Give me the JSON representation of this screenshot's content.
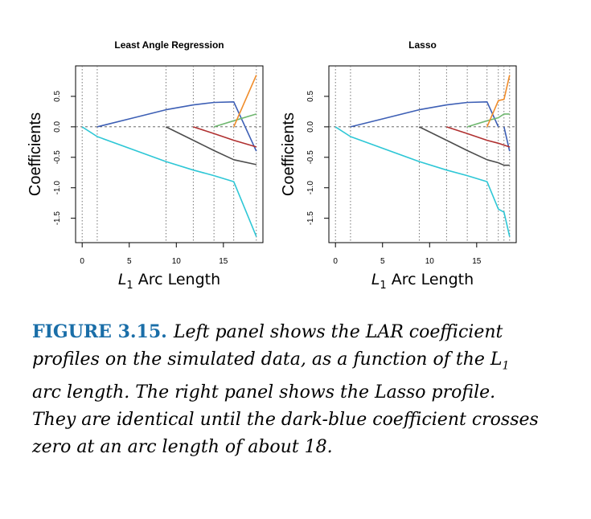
{
  "chart_data": [
    {
      "type": "line",
      "title": "Least Angle Regression",
      "xlabel": "L1 Arc Length",
      "xlabel_main": "L",
      "xlabel_sub": "1",
      "xlabel_rest": " Arc Length",
      "ylabel": "Coefficients",
      "xlim": [
        -0.7,
        19.2
      ],
      "ylim": [
        -1.9,
        1.0
      ],
      "xticks": [
        0,
        5,
        10,
        15
      ],
      "yticks": [
        -1.5,
        -1.0,
        -0.5,
        0.0,
        0.5
      ],
      "ytick_labels": [
        "-1.5",
        "-1.0",
        "-0.5",
        "0.0",
        "0.5"
      ],
      "vlines": [
        0.0,
        1.6,
        8.9,
        11.8,
        14.0,
        16.1,
        18.5
      ],
      "zero_line": true,
      "series": [
        {
          "color": "#3d5fb5",
          "x": [
            1.6,
            5.0,
            8.9,
            11.8,
            14.0,
            16.1,
            18.5
          ],
          "y": [
            0.0,
            0.13,
            0.28,
            0.36,
            0.4,
            0.41,
            -0.4
          ]
        },
        {
          "color": "#2ec7d6",
          "x": [
            0.0,
            1.6,
            8.9,
            11.8,
            14.0,
            16.1,
            18.5
          ],
          "y": [
            0.0,
            -0.16,
            -0.57,
            -0.71,
            -0.8,
            -0.9,
            -1.8
          ]
        },
        {
          "color": "#4d4d4d",
          "x": [
            8.9,
            11.8,
            14.0,
            16.1,
            18.5
          ],
          "y": [
            0.0,
            -0.22,
            -0.39,
            -0.54,
            -0.62
          ]
        },
        {
          "color": "#b03030",
          "x": [
            11.8,
            14.0,
            16.1,
            18.5
          ],
          "y": [
            0.0,
            -0.11,
            -0.22,
            -0.33
          ]
        },
        {
          "color": "#70b870",
          "x": [
            14.0,
            16.1,
            18.5
          ],
          "y": [
            0.0,
            0.1,
            0.21
          ]
        },
        {
          "color": "#f08c2a",
          "x": [
            16.1,
            18.5
          ],
          "y": [
            0.0,
            0.85
          ]
        }
      ]
    },
    {
      "type": "line",
      "title": "Lasso",
      "xlabel": "L1 Arc Length",
      "xlabel_main": "L",
      "xlabel_sub": "1",
      "xlabel_rest": " Arc Length",
      "ylabel": "Coefficients",
      "xlim": [
        -0.7,
        19.2
      ],
      "ylim": [
        -1.9,
        1.0
      ],
      "xticks": [
        0,
        5,
        10,
        15
      ],
      "yticks": [
        -1.5,
        -1.0,
        -0.5,
        0.0,
        0.5
      ],
      "ytick_labels": [
        "-1.5",
        "-1.0",
        "-0.5",
        "0.0",
        "0.5"
      ],
      "vlines": [
        0.0,
        1.6,
        8.9,
        11.8,
        14.0,
        16.1,
        17.3,
        17.9,
        18.5
      ],
      "zero_line": true,
      "series": [
        {
          "color": "#3d5fb5",
          "x": [
            1.6,
            5.0,
            8.9,
            11.8,
            14.0,
            16.1,
            17.3
          ],
          "y": [
            0.0,
            0.13,
            0.28,
            0.36,
            0.4,
            0.41,
            0.0
          ]
        },
        {
          "color": "#3d5fb5",
          "x": [
            17.9,
            18.5
          ],
          "y": [
            0.0,
            -0.4
          ]
        },
        {
          "color": "#2ec7d6",
          "x": [
            0.0,
            1.6,
            8.9,
            11.8,
            14.0,
            16.1,
            17.3,
            17.9,
            18.5
          ],
          "y": [
            0.0,
            -0.16,
            -0.57,
            -0.71,
            -0.8,
            -0.9,
            -1.35,
            -1.4,
            -1.8
          ]
        },
        {
          "color": "#4d4d4d",
          "x": [
            8.9,
            11.8,
            14.0,
            16.1,
            17.3,
            17.9,
            18.5
          ],
          "y": [
            0.0,
            -0.22,
            -0.39,
            -0.54,
            -0.59,
            -0.63,
            -0.63
          ]
        },
        {
          "color": "#b03030",
          "x": [
            11.8,
            14.0,
            16.1,
            17.3,
            17.9,
            18.5
          ],
          "y": [
            0.0,
            -0.11,
            -0.22,
            -0.27,
            -0.3,
            -0.33
          ]
        },
        {
          "color": "#70b870",
          "x": [
            14.0,
            16.1,
            17.3,
            17.9,
            18.5
          ],
          "y": [
            0.0,
            0.1,
            0.15,
            0.21,
            0.21
          ]
        },
        {
          "color": "#f08c2a",
          "x": [
            16.1,
            17.3,
            17.9,
            18.5
          ],
          "y": [
            0.0,
            0.43,
            0.45,
            0.85
          ]
        }
      ]
    }
  ],
  "caption": {
    "label": "FIGURE 3.15.",
    "lines": [
      "Left panel shows the LAR coefficient",
      "profiles on the simulated data, as a function of the L",
      "arc length.  The right panel shows the Lasso profile.",
      "They are identical until the dark-blue coefficient crosses",
      "zero at an arc length of about 18."
    ],
    "line2_sub": "1"
  }
}
